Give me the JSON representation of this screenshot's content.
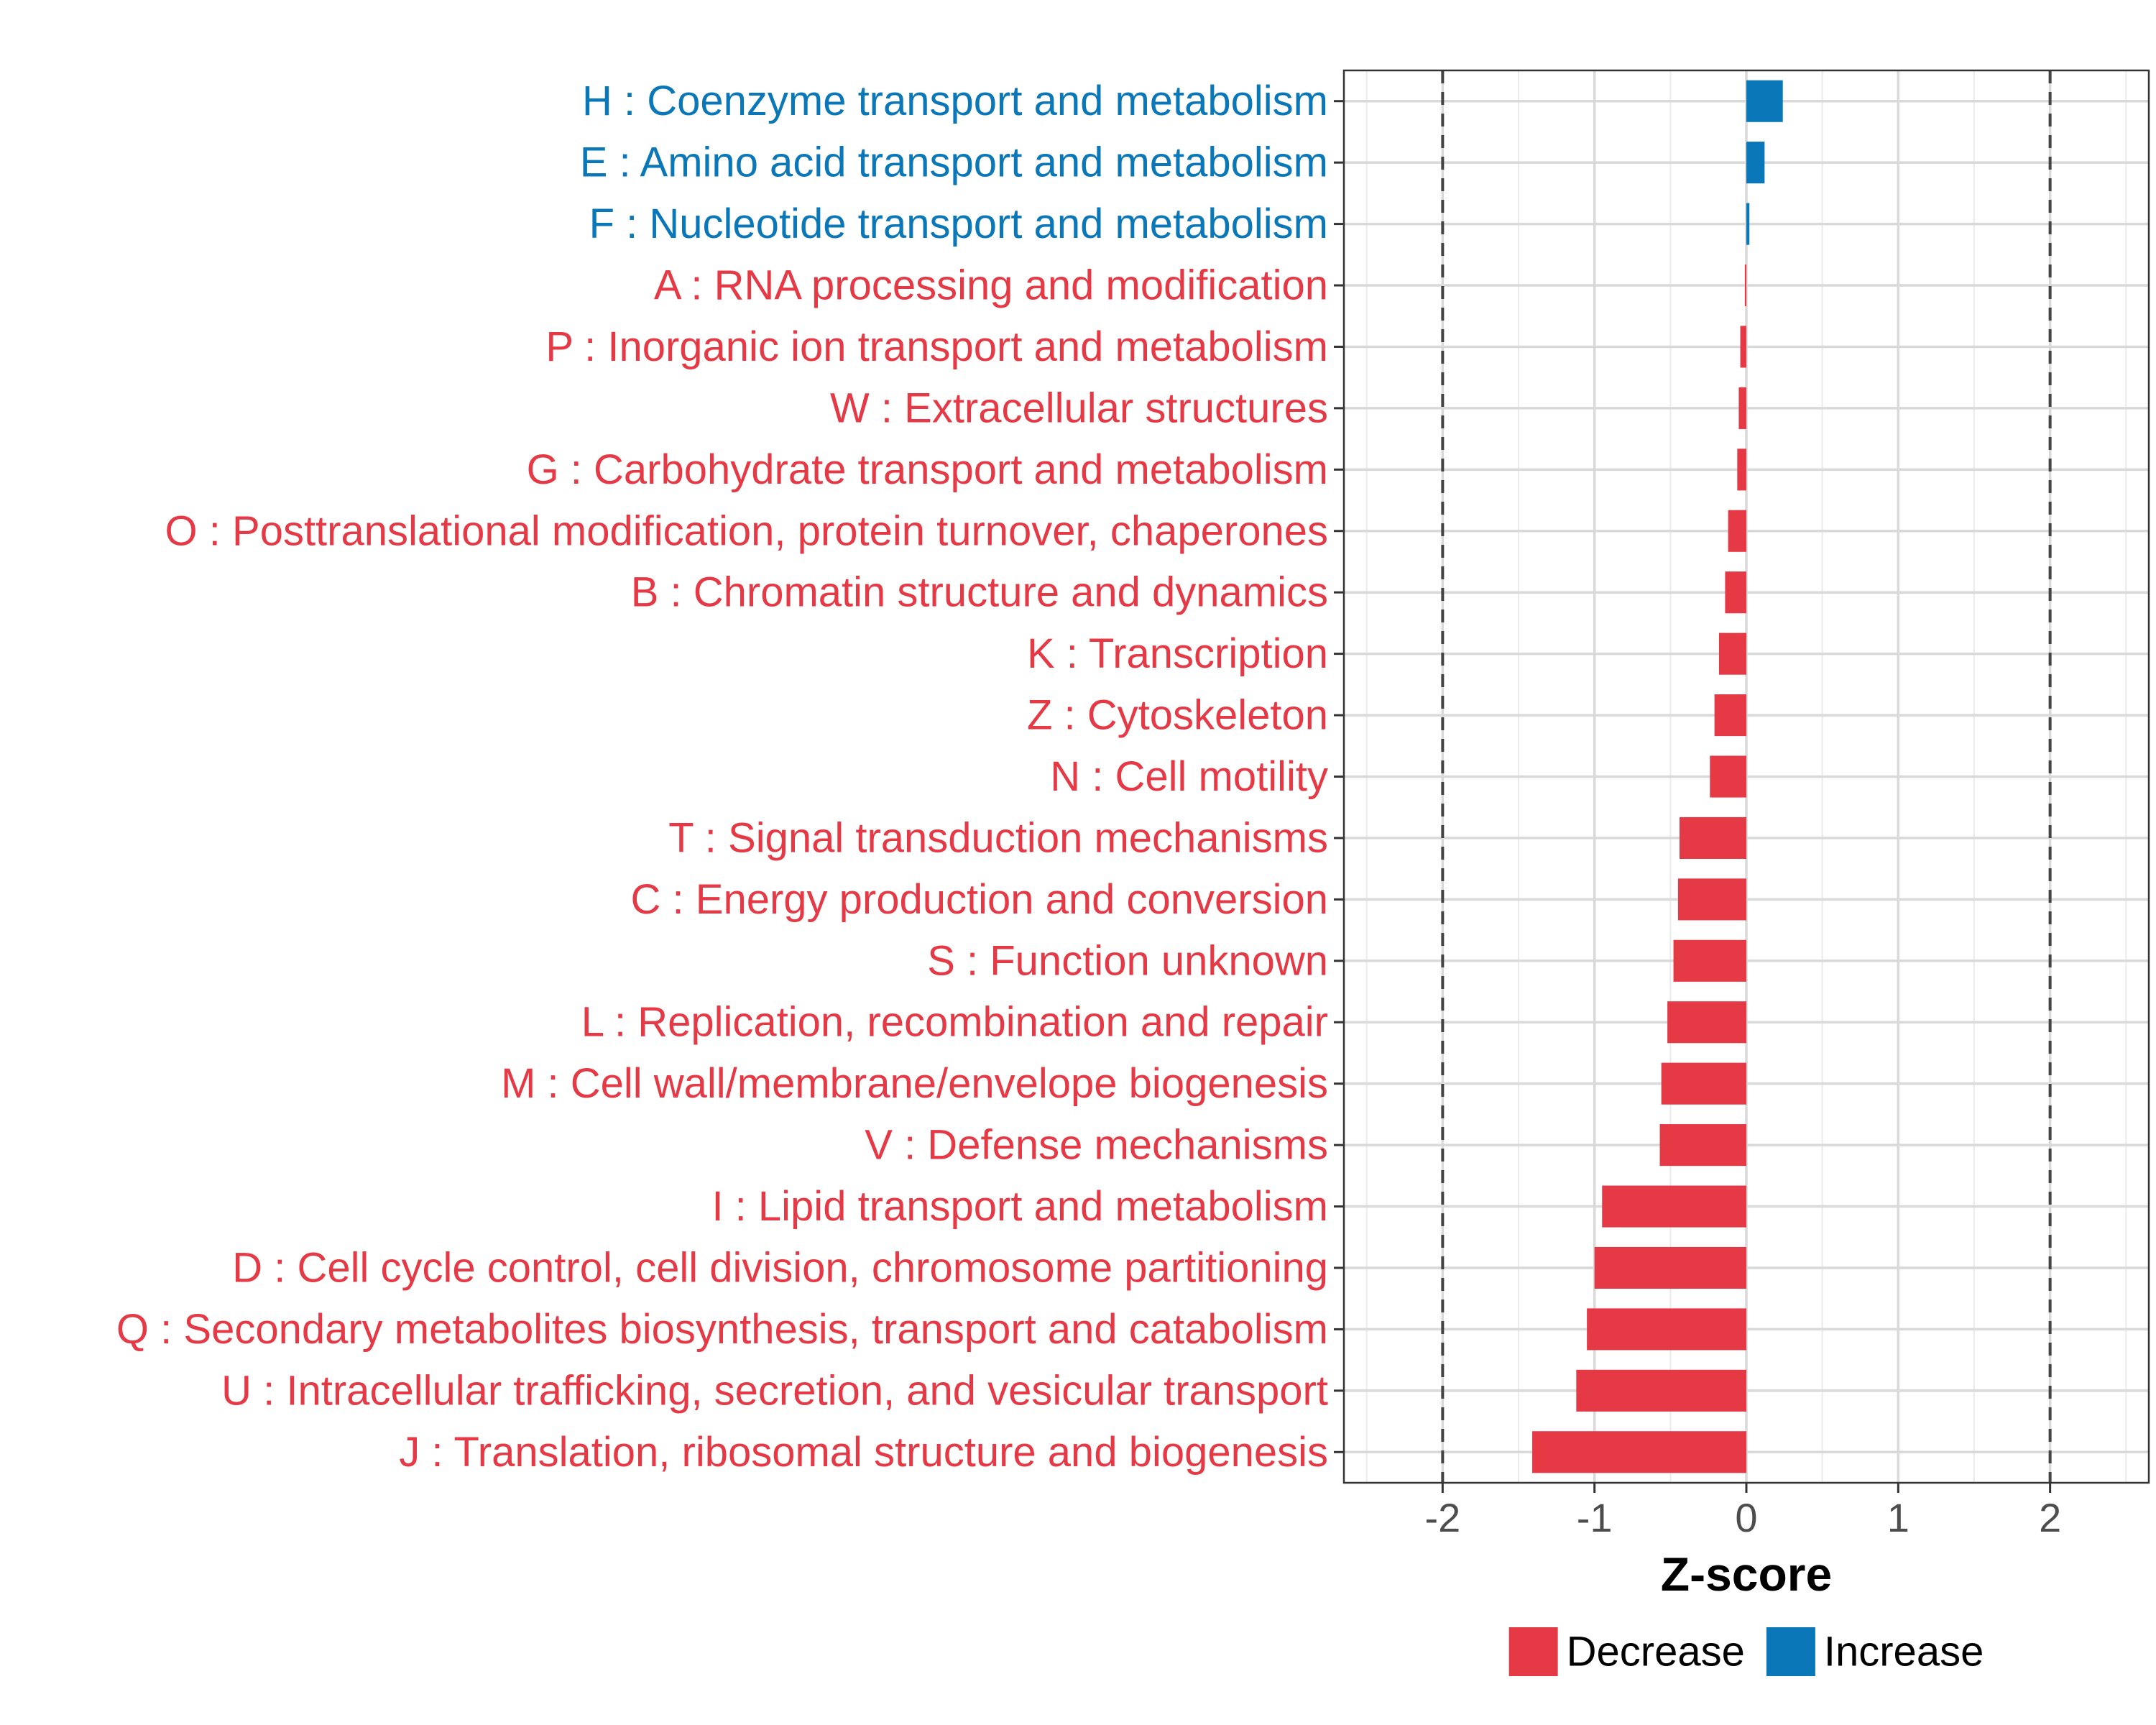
{
  "chart_data": {
    "type": "bar",
    "orientation": "horizontal",
    "xlabel": "Z-score",
    "xlim": [
      -2.65,
      2.65
    ],
    "xticks": [
      -2,
      -1,
      0,
      1,
      2
    ],
    "xtick_labels": [
      "-2",
      "-1",
      "0",
      "1",
      "2"
    ],
    "reference_lines": [
      -2,
      2
    ],
    "grid": true,
    "colors": {
      "Decrease": "#E63946",
      "Increase": "#0A77B8"
    },
    "categories": [
      "H : Coenzyme transport and metabolism",
      "E : Amino acid transport and metabolism",
      "F : Nucleotide transport and metabolism",
      "A : RNA processing and modification",
      "P : Inorganic ion transport and metabolism",
      "W : Extracellular structures",
      "G : Carbohydrate transport and metabolism",
      "O : Posttranslational modification, protein turnover, chaperones",
      "B : Chromatin structure and dynamics",
      "K : Transcription",
      "Z : Cytoskeleton",
      "N : Cell motility",
      "T : Signal transduction mechanisms",
      "C : Energy production and conversion",
      "S : Function unknown",
      "L : Replication, recombination and repair",
      "M : Cell wall/membrane/envelope biogenesis",
      "V : Defense mechanisms",
      "I : Lipid transport and metabolism",
      "D : Cell cycle control, cell division, chromosome partitioning",
      "Q : Secondary metabolites biosynthesis, transport and catabolism",
      "U : Intracellular trafficking, secretion, and vesicular transport",
      "J : Translation, ribosomal structure and biogenesis"
    ],
    "values": [
      0.24,
      0.12,
      0.02,
      -0.01,
      -0.04,
      -0.05,
      -0.06,
      -0.12,
      -0.14,
      -0.18,
      -0.21,
      -0.24,
      -0.44,
      -0.45,
      -0.48,
      -0.52,
      -0.56,
      -0.57,
      -0.95,
      -1.0,
      -1.05,
      -1.12,
      -1.41
    ],
    "direction": [
      "Increase",
      "Increase",
      "Increase",
      "Decrease",
      "Decrease",
      "Decrease",
      "Decrease",
      "Decrease",
      "Decrease",
      "Decrease",
      "Decrease",
      "Decrease",
      "Decrease",
      "Decrease",
      "Decrease",
      "Decrease",
      "Decrease",
      "Decrease",
      "Decrease",
      "Decrease",
      "Decrease",
      "Decrease",
      "Decrease"
    ],
    "legend": {
      "position": "bottom",
      "entries": [
        "Decrease",
        "Increase"
      ]
    }
  }
}
